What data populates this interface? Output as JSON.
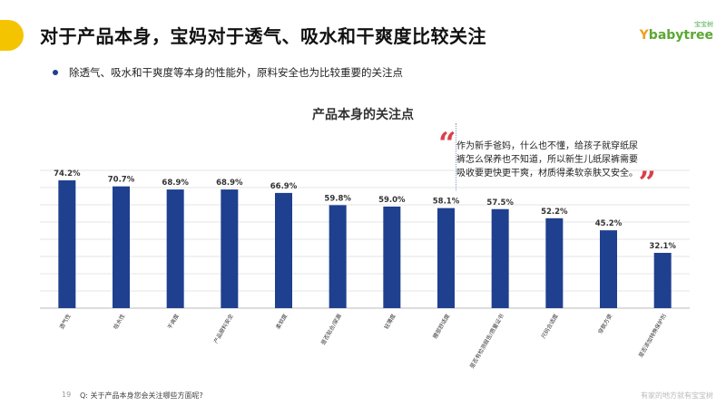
{
  "header": {
    "title": "对于产品本身，宝妈对于透气、吸水和干爽度比较关注",
    "logo_cn": "宝宝树",
    "logo_en": "babytree",
    "logo_y": "Y"
  },
  "bullet": "除透气、吸水和干爽度等本身的性能外，原料安全也为比较重要的关注点",
  "quote": {
    "open": "“",
    "text": "作为新手爸妈，什么也不懂，给孩子就穿纸尿裤怎么保养也不知道，所以新生儿纸尿裤需要吸收要更快更干爽，材质得柔软亲肤又安全。",
    "close": "”"
  },
  "colors": {
    "bar": "#1f3f8f",
    "accent": "#f5c400",
    "quote": "#d9404a"
  },
  "chart_data": {
    "type": "bar",
    "title": "产品本身的关注点",
    "categories": [
      "透气性",
      "吸水性",
      "干爽度",
      "产品原料安全",
      "柔软度",
      "是否贴合/尿漏",
      "轻薄度",
      "腰部舒适度",
      "是否有检测报告/质量证书",
      "尺码合适度",
      "穿脱方便",
      "是否添加特殊保护剂"
    ],
    "values": [
      74.2,
      70.7,
      68.9,
      68.9,
      66.9,
      59.8,
      59.0,
      58.1,
      57.5,
      52.2,
      45.2,
      32.1
    ],
    "value_labels": [
      "74.2%",
      "70.7%",
      "68.9%",
      "68.9%",
      "66.9%",
      "59.8%",
      "59.0%",
      "58.1%",
      "57.5%",
      "52.2%",
      "45.2%",
      "32.1%"
    ],
    "ylim": [
      0,
      80
    ],
    "grid": true,
    "legend": "none"
  },
  "footer": {
    "page": "19",
    "question": "Q:   关于产品本身您会关注哪些方面呢?",
    "slogan": "有家的地方就有宝宝树"
  }
}
